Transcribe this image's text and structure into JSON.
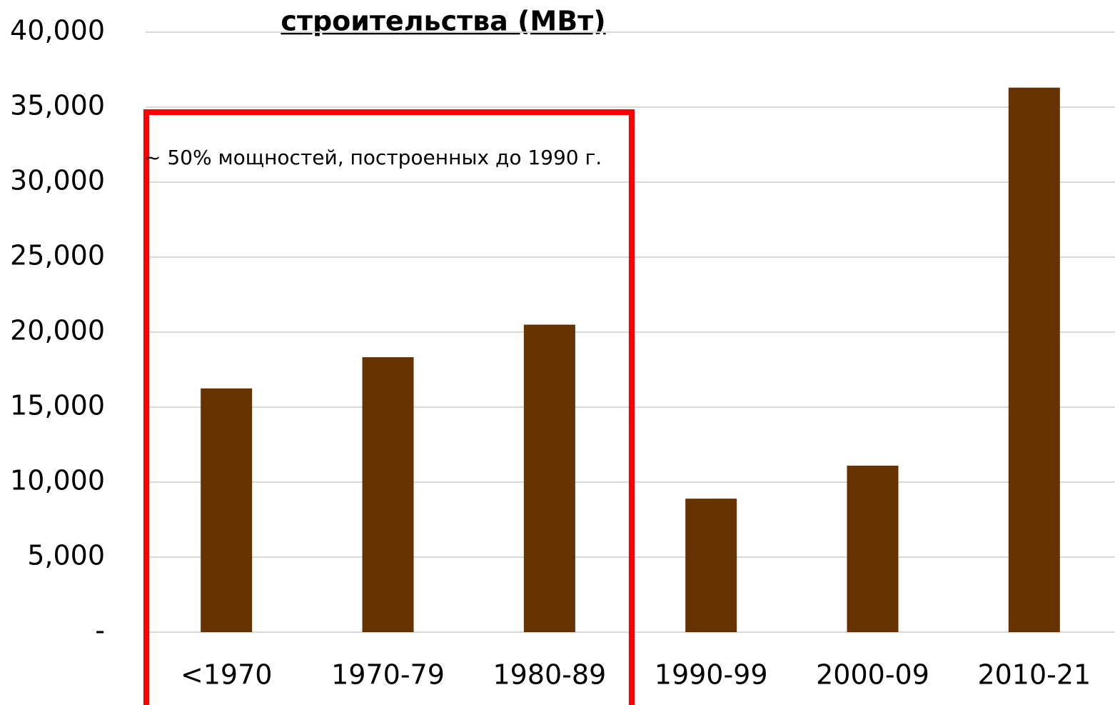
{
  "chart_data": {
    "type": "bar",
    "title": "строительства (МВт)",
    "annotation": "~ 50% мощностей, построенных до 1990 г.",
    "categories": [
      "<1970",
      "1970-79",
      "1980-89",
      "1990-99",
      "2000-09",
      "2010-21"
    ],
    "values": [
      16250,
      18330,
      20500,
      8900,
      11100,
      36300
    ],
    "color": "#663300",
    "ylim": [
      0,
      40000
    ],
    "yticks": [
      {
        "value": 0,
        "label": "-"
      },
      {
        "value": 5000,
        "label": "5,000"
      },
      {
        "value": 10000,
        "label": "10,000"
      },
      {
        "value": 15000,
        "label": "15,000"
      },
      {
        "value": 20000,
        "label": "20,000"
      },
      {
        "value": 25000,
        "label": "25,000"
      },
      {
        "value": 30000,
        "label": "30,000"
      },
      {
        "value": 35000,
        "label": "35,000"
      },
      {
        "value": 40000,
        "label": "40,000"
      }
    ],
    "grid": true
  }
}
